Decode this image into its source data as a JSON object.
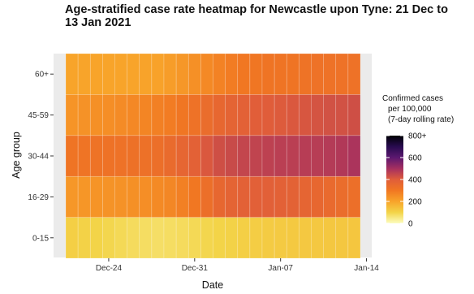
{
  "chart_data": {
    "type": "heatmap",
    "title": "Age-stratified case rate heatmap for Newcastle upon Tyne: 21 Dec to 13 Jan 2021",
    "xlabel": "Date",
    "ylabel": "Age group",
    "x_tick_labels": [
      "Dec-24",
      "Dec-31",
      "Jan-07",
      "Jan-14"
    ],
    "x_ticks": [
      "2020-12-24",
      "2020-12-31",
      "2021-01-07",
      "2021-01-14"
    ],
    "dates": [
      "2020-12-21",
      "2020-12-22",
      "2020-12-23",
      "2020-12-24",
      "2020-12-25",
      "2020-12-26",
      "2020-12-27",
      "2020-12-28",
      "2020-12-29",
      "2020-12-30",
      "2020-12-31",
      "2021-01-01",
      "2021-01-02",
      "2021-01-03",
      "2021-01-04",
      "2021-01-05",
      "2021-01-06",
      "2021-01-07",
      "2021-01-08",
      "2021-01-09",
      "2021-01-10",
      "2021-01-11",
      "2021-01-12",
      "2021-01-13"
    ],
    "age_groups": [
      "0-15",
      "16-29",
      "30-44",
      "45-59",
      "60+"
    ],
    "values": [
      [
        110,
        105,
        100,
        95,
        88,
        82,
        78,
        75,
        78,
        82,
        88,
        95,
        100,
        105,
        110,
        115,
        118,
        120,
        122,
        125,
        125,
        128,
        128,
        130
      ],
      [
        230,
        232,
        235,
        238,
        240,
        245,
        250,
        258,
        265,
        280,
        300,
        330,
        360,
        375,
        385,
        390,
        390,
        385,
        380,
        370,
        360,
        350,
        340,
        330
      ],
      [
        310,
        312,
        315,
        318,
        320,
        322,
        325,
        330,
        345,
        365,
        385,
        410,
        430,
        440,
        450,
        455,
        460,
        465,
        465,
        470,
        470,
        475,
        480,
        490
      ],
      [
        235,
        240,
        245,
        250,
        255,
        262,
        270,
        280,
        290,
        305,
        320,
        340,
        360,
        375,
        385,
        395,
        400,
        405,
        410,
        415,
        420,
        425,
        425,
        430
      ],
      [
        200,
        200,
        200,
        200,
        200,
        200,
        202,
        205,
        215,
        230,
        245,
        260,
        275,
        290,
        300,
        305,
        310,
        310,
        310,
        315,
        320,
        320,
        320,
        320
      ]
    ],
    "legend": {
      "title_lines": [
        "Confirmed cases",
        "per 100,000",
        "(7-day rolling rate)"
      ],
      "tick_values": [
        0,
        200,
        400,
        600,
        800
      ],
      "tick_labels": [
        "0",
        "200",
        "400",
        "600",
        "800+"
      ],
      "range": [
        0,
        800
      ],
      "placement": "right"
    },
    "colorscale": [
      "#fcfdbf",
      "#f3d448",
      "#f8a42a",
      "#f17722",
      "#e05d3a",
      "#a52f60",
      "#5c1870",
      "#280b4f",
      "#000004"
    ],
    "grid": true,
    "panel_background": "#ebebeb"
  }
}
